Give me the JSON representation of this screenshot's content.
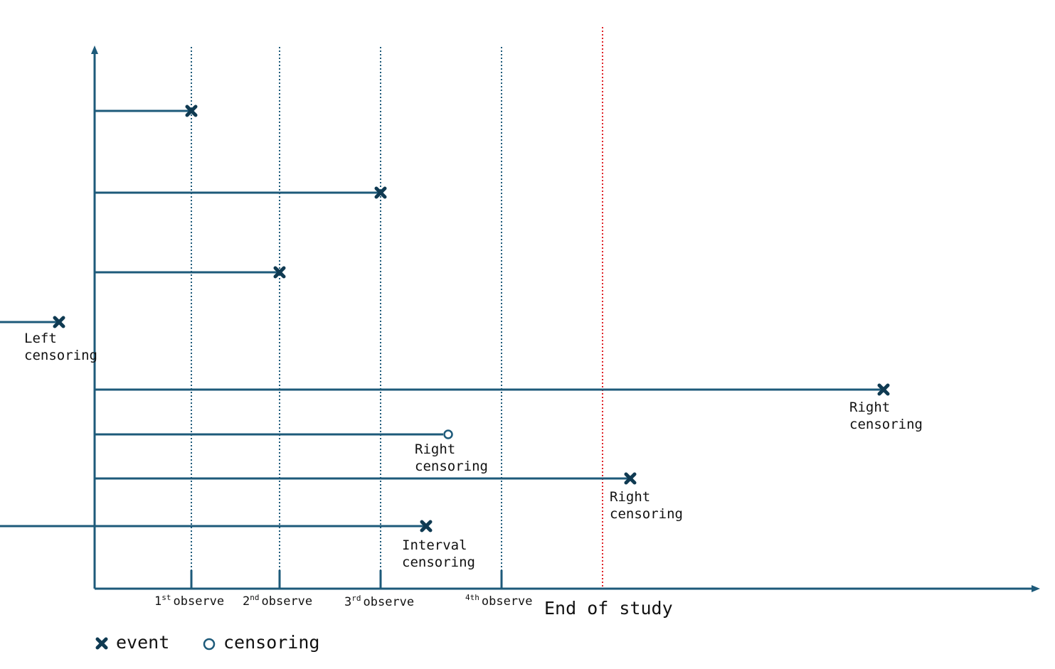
{
  "colors": {
    "line": "#1d5a7a",
    "marker": "#0f3a52",
    "end_line": "#e0242a",
    "text": "#111111"
  },
  "observations": [
    {
      "num": "1",
      "sup": "st",
      "text": "observe"
    },
    {
      "num": "2",
      "sup": "nd",
      "text": "observe"
    },
    {
      "num": "3",
      "sup": "rd",
      "text": "observe"
    },
    {
      "num": "4",
      "sup": "th",
      "text": "observe"
    }
  ],
  "end_of_study": "End of study",
  "subjects": [
    {
      "start": "axis",
      "end": "obs1",
      "marker": "event",
      "note": []
    },
    {
      "start": "axis",
      "end": "obs3",
      "marker": "event",
      "note": []
    },
    {
      "start": "axis",
      "end": "obs2",
      "marker": "event",
      "note": []
    },
    {
      "start": "before-axis",
      "end": "before-axis",
      "marker": "event",
      "note": [
        "Left",
        "censoring"
      ]
    },
    {
      "start": "axis",
      "end": "beyond-end-of-study",
      "marker": "event",
      "note": [
        "Right",
        "censoring"
      ]
    },
    {
      "start": "axis",
      "end": "between-obs3-obs4",
      "marker": "censoring",
      "note": [
        "Right",
        "censoring"
      ]
    },
    {
      "start": "axis",
      "end": "after-end-of-study",
      "marker": "event",
      "note": [
        "Right",
        "censoring"
      ]
    },
    {
      "start": "before-axis",
      "end": "between-obs3-obs4",
      "marker": "event",
      "note": [
        "Interval",
        "censoring"
      ]
    }
  ],
  "legend": {
    "event_label": "event",
    "event_icon": "x-marker-icon",
    "censoring_label": "censoring",
    "censoring_icon": "open-circle-icon"
  }
}
